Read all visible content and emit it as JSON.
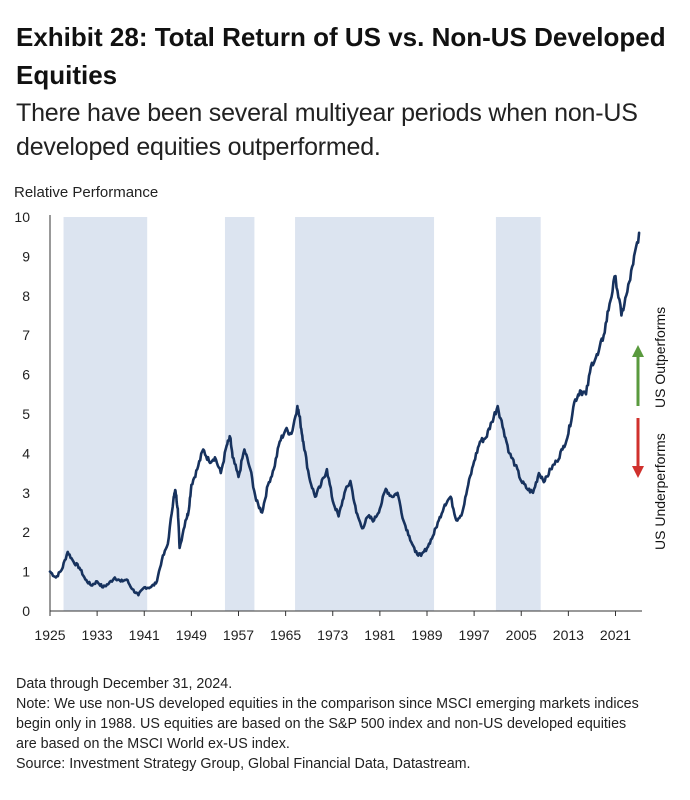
{
  "title": "Exhibit 28: Total Return of US vs. Non-US Developed Equities",
  "subtitle": "There have been several multiyear periods when non-US developed equities outperformed.",
  "notes": [
    "Data through December 31, 2024.",
    "Note: We use non-US developed equities in the comparison since MSCI emerging markets indices",
    "begin only in 1988. US equities are based on the S&P 500 index and non-US developed equities",
    "are based on the MSCI World ex-US index.",
    "Source: Investment Strategy Group, Global Financial Data, Datastream."
  ],
  "colors": {
    "line": "#17325e",
    "shade": "#dce4f0",
    "up_arrow": "#5a9a3e",
    "down_arrow": "#d0312d"
  },
  "chart_data": {
    "type": "line",
    "ylabel": "Relative Performance",
    "xlabel": "",
    "ylim": [
      0,
      10
    ],
    "xlim": [
      1925,
      2025.5
    ],
    "yticks": [
      0,
      1,
      2,
      3,
      4,
      5,
      6,
      7,
      8,
      9,
      10
    ],
    "xticks": [
      1925,
      1933,
      1941,
      1949,
      1957,
      1965,
      1973,
      1981,
      1989,
      1997,
      2005,
      2013,
      2021
    ],
    "grid": false,
    "shaded_periods": [
      [
        1927.3,
        1941.5
      ],
      [
        1954.7,
        1959.7
      ],
      [
        1966.6,
        1990.2
      ],
      [
        2000.7,
        2008.3
      ]
    ],
    "annotations": {
      "up": "US Outperforms",
      "down": "US Underperforms"
    },
    "series": [
      {
        "x": [
          1925,
          1926,
          1927,
          1928,
          1929,
          1930,
          1931,
          1932,
          1933,
          1934,
          1935,
          1936,
          1937,
          1938,
          1939,
          1940,
          1941,
          1942,
          1943,
          1944,
          1945,
          1946,
          1946.3,
          1946.7,
          1947,
          1948,
          1948.5,
          1949,
          1950,
          1951,
          1952,
          1953,
          1954,
          1955,
          1955.6,
          1956,
          1957,
          1958,
          1959,
          1960,
          1961,
          1962,
          1963,
          1964,
          1965,
          1966,
          1967,
          1967.5,
          1968,
          1969,
          1970,
          1971,
          1972,
          1973,
          1974,
          1975,
          1976,
          1977,
          1978,
          1979,
          1980,
          1981,
          1982,
          1983,
          1984,
          1985,
          1986,
          1987,
          1988,
          1989,
          1990,
          1991,
          1992,
          1993,
          1994,
          1995,
          1996,
          1997,
          1998,
          1999,
          2000,
          2001,
          2002,
          2003,
          2004,
          2005,
          2006,
          2007,
          2008,
          2009,
          2010,
          2011,
          2012,
          2013,
          2014,
          2015,
          2016,
          2017,
          2018,
          2019,
          2020,
          2021,
          2022,
          2023,
          2024,
          2025
        ],
        "values": [
          1.0,
          0.85,
          1.05,
          1.5,
          1.25,
          1.1,
          0.8,
          0.65,
          0.75,
          0.6,
          0.7,
          0.85,
          0.75,
          0.8,
          0.55,
          0.4,
          0.6,
          0.6,
          0.7,
          1.3,
          1.7,
          2.9,
          3.05,
          2.6,
          1.6,
          2.3,
          2.5,
          3.2,
          3.6,
          4.1,
          3.8,
          3.9,
          3.5,
          4.2,
          4.4,
          3.9,
          3.4,
          4.1,
          3.6,
          2.8,
          2.5,
          3.2,
          3.6,
          4.3,
          4.6,
          4.5,
          5.2,
          4.8,
          4.3,
          3.4,
          2.9,
          3.2,
          3.6,
          2.8,
          2.4,
          3.0,
          3.3,
          2.5,
          2.1,
          2.4,
          2.3,
          2.6,
          3.1,
          2.9,
          3.0,
          2.3,
          1.9,
          1.5,
          1.4,
          1.6,
          1.9,
          2.3,
          2.7,
          2.9,
          2.3,
          2.5,
          3.2,
          3.8,
          4.3,
          4.4,
          4.8,
          5.2,
          4.6,
          4.0,
          3.7,
          3.3,
          3.1,
          3.0,
          3.5,
          3.3,
          3.6,
          3.8,
          4.1,
          4.5,
          5.3,
          5.6,
          5.5,
          6.3,
          6.5,
          7.0,
          7.8,
          8.5,
          7.5,
          8.1,
          8.8,
          9.6
        ]
      }
    ]
  }
}
